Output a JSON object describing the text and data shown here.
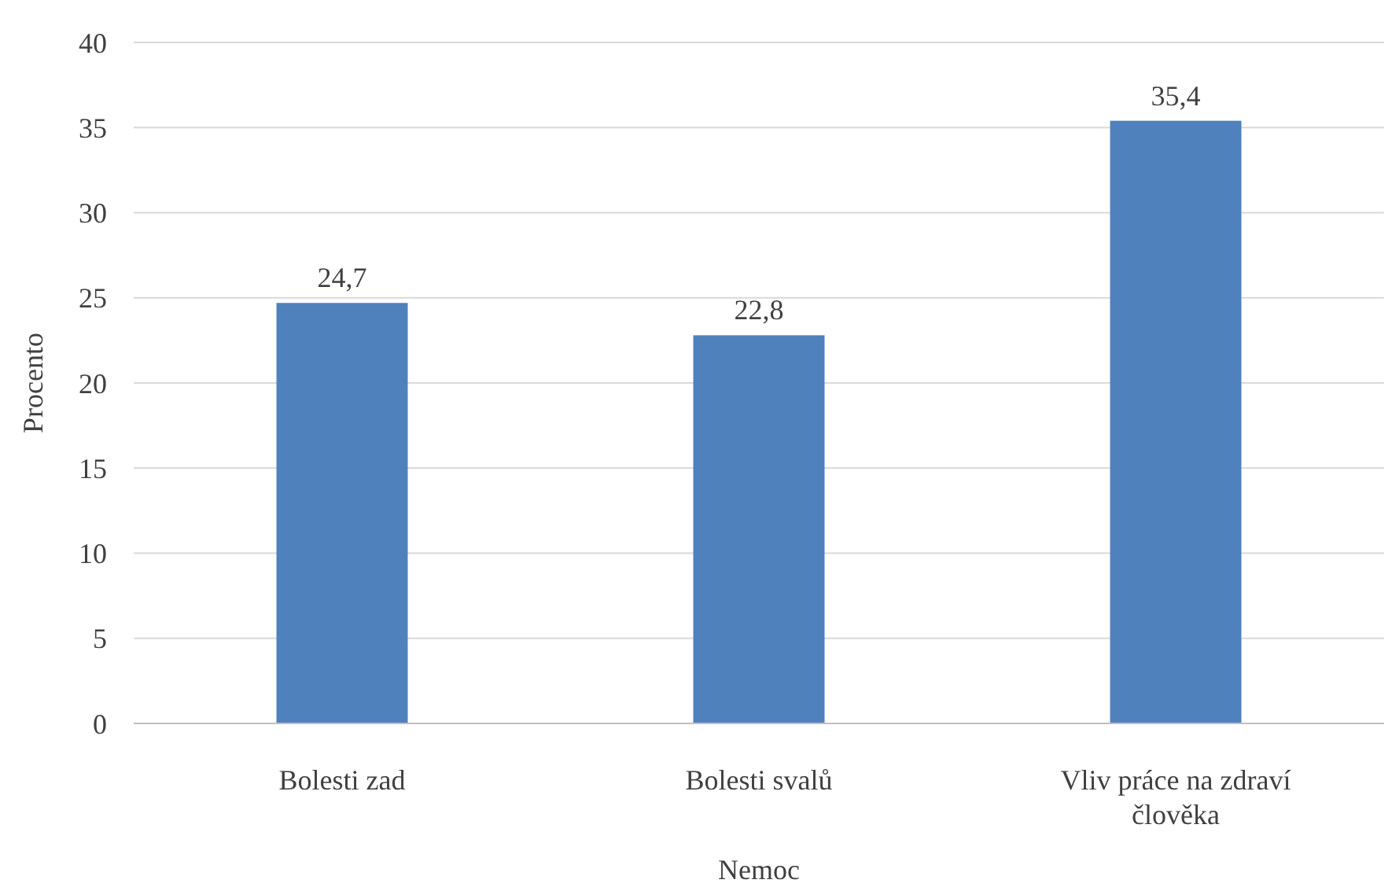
{
  "chart_data": {
    "type": "bar",
    "xlabel": "Nemoc",
    "ylabel": "Procento",
    "categories": [
      "Bolesti zad",
      "Bolesti svalů",
      "Vliv práce na zdraví člověka"
    ],
    "values": [
      24.7,
      22.8,
      35.4
    ],
    "value_labels": [
      "24,7",
      "22,8",
      "35,4"
    ],
    "color": "#4f81bd",
    "ylim": [
      0,
      40
    ],
    "yticks": [
      0,
      5,
      10,
      15,
      20,
      25,
      30,
      35,
      40
    ],
    "grid": "y"
  }
}
